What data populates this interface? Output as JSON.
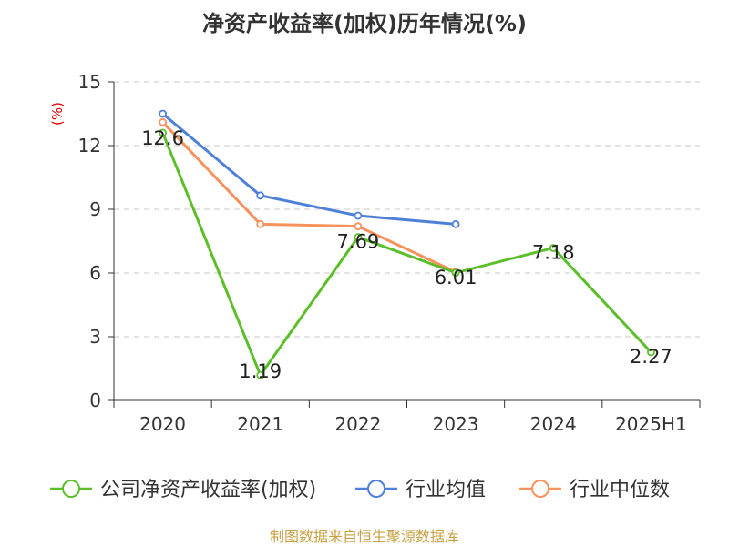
{
  "chart_data": {
    "type": "line",
    "title": "净资产收益率(加权)历年情况(%)",
    "ylabel": "(%)",
    "categories": [
      "2020",
      "2021",
      "2022",
      "2023",
      "2024",
      "2025H1"
    ],
    "ylim": [
      0,
      15
    ],
    "yticks": [
      "0",
      "3",
      "6",
      "9",
      "12",
      "15"
    ],
    "grid": true,
    "legend_position": "bottom",
    "series": [
      {
        "name": "公司净资产收益率(加权)",
        "color": "#5cbf2a",
        "values": [
          12.6,
          1.19,
          7.69,
          6.01,
          7.18,
          2.27
        ],
        "labels": [
          "12.6",
          "1.19",
          "7.69",
          "6.01",
          "7.18",
          "2.27"
        ]
      },
      {
        "name": "行业均值",
        "color": "#4e80d8",
        "values": [
          13.5,
          9.65,
          8.7,
          8.3,
          null,
          null
        ]
      },
      {
        "name": "行业中位数",
        "color": "#f5925e",
        "values": [
          13.1,
          8.3,
          8.2,
          6.05,
          null,
          null
        ]
      }
    ]
  },
  "source": "制图数据来自恒生聚源数据库"
}
